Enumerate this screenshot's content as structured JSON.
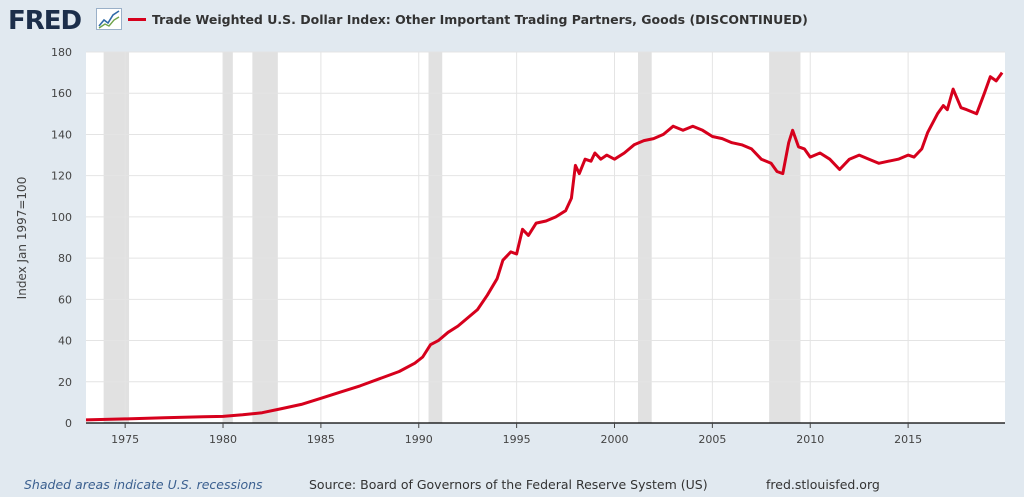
{
  "header": {
    "logo_text": "FRED",
    "series_title": "Trade Weighted U.S. Dollar Index: Other Important Trading Partners, Goods (DISCONTINUED)"
  },
  "footer": {
    "recession_note": "Shaded areas indicate U.S. recessions",
    "source": "Source: Board of Governors of the Federal Reserve System (US)",
    "site": "fred.stlouisfed.org"
  },
  "colors": {
    "line": "#d6001c",
    "recession": "#e1e1e1",
    "grid": "#e4e4e4"
  },
  "chart_data": {
    "type": "line",
    "title": "Trade Weighted U.S. Dollar Index: Other Important Trading Partners, Goods (DISCONTINUED)",
    "ylabel": "Index Jan 1997=100",
    "xlabel": "",
    "xlim": [
      1973.0,
      2019.95
    ],
    "ylim": [
      0,
      180
    ],
    "x_ticks": [
      1975,
      1980,
      1985,
      1990,
      1995,
      2000,
      2005,
      2010,
      2015
    ],
    "y_ticks": [
      0,
      20,
      40,
      60,
      80,
      100,
      120,
      140,
      160,
      180
    ],
    "grid": true,
    "recessions": [
      [
        1973.9,
        1975.2
      ],
      [
        1980.0,
        1980.5
      ],
      [
        1981.5,
        1982.8
      ],
      [
        1990.5,
        1991.2
      ],
      [
        2001.2,
        2001.9
      ],
      [
        2007.9,
        2009.5
      ]
    ],
    "series": [
      {
        "name": "Trade Weighted U.S. Dollar Index: Other Important Trading Partners, Goods (DISCONTINUED)",
        "x": [
          1973.0,
          1975,
          1977,
          1979,
          1980,
          1981,
          1982,
          1983,
          1984,
          1985,
          1986,
          1987,
          1988,
          1989,
          1989.8,
          1990.2,
          1990.6,
          1991,
          1991.5,
          1992,
          1992.5,
          1993,
          1993.5,
          1994,
          1994.3,
          1994.7,
          1995,
          1995.3,
          1995.6,
          1996,
          1996.5,
          1997,
          1997.5,
          1997.8,
          1998,
          1998.2,
          1998.5,
          1998.8,
          1999,
          1999.3,
          1999.6,
          2000,
          2000.5,
          2001,
          2001.5,
          2002,
          2002.5,
          2003,
          2003.5,
          2004,
          2004.5,
          2005,
          2005.5,
          2006,
          2006.5,
          2007,
          2007.5,
          2008,
          2008.3,
          2008.6,
          2008.9,
          2009.1,
          2009.4,
          2009.7,
          2010,
          2010.5,
          2011,
          2011.5,
          2012,
          2012.5,
          2013,
          2013.5,
          2014,
          2014.5,
          2015,
          2015.3,
          2015.7,
          2016,
          2016.5,
          2016.8,
          2017,
          2017.3,
          2017.7,
          2018,
          2018.5,
          2018.9,
          2019.2,
          2019.5,
          2019.8
        ],
        "y": [
          1.5,
          2,
          2.5,
          3,
          3.2,
          4,
          5,
          7,
          9,
          12,
          15,
          18,
          21.5,
          25,
          29,
          32,
          38,
          40,
          44,
          47,
          51,
          55,
          62,
          70,
          79,
          83,
          82,
          94,
          91,
          97,
          98,
          100,
          103,
          109,
          125,
          121,
          128,
          127,
          131,
          128,
          130,
          128,
          131,
          135,
          137,
          138,
          140,
          144,
          142,
          144,
          142,
          139,
          138,
          136,
          135,
          133,
          128,
          126,
          122,
          121,
          136,
          142,
          134,
          133,
          129,
          131,
          128,
          123,
          128,
          130,
          128,
          126,
          127,
          128,
          130,
          129,
          133,
          141,
          150,
          154,
          152,
          162,
          153,
          152,
          150,
          160,
          168,
          166,
          170
        ]
      }
    ]
  }
}
